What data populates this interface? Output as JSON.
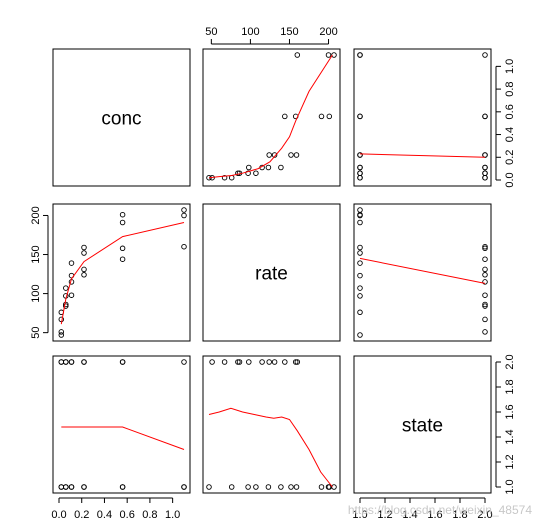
{
  "chart_data": {
    "type": "scatter",
    "layout": "scatterplot-matrix",
    "variables": [
      "conc",
      "rate",
      "state"
    ],
    "colors": {
      "points": "#000000",
      "smooth_line": "#ff0000",
      "frame": "#000000"
    },
    "axes": {
      "conc": {
        "range": [
          0.0,
          1.1
        ],
        "ticks": [
          "0.0",
          "0.2",
          "0.4",
          "0.6",
          "0.8",
          "1.0"
        ],
        "tick_values": [
          0.0,
          0.2,
          0.4,
          0.6,
          0.8,
          1.0
        ]
      },
      "rate": {
        "range": [
          47,
          207
        ],
        "ticks": [
          "50",
          "100",
          "150",
          "200"
        ],
        "tick_values": [
          50,
          100,
          150,
          200
        ]
      },
      "state": {
        "range": [
          1.0,
          2.0
        ],
        "ticks": [
          "1.0",
          "1.2",
          "1.4",
          "1.6",
          "1.8",
          "2.0"
        ],
        "tick_values": [
          1.0,
          1.2,
          1.4,
          1.6,
          1.8,
          2.0
        ]
      }
    },
    "tick_label_positions": {
      "conc": "bottom",
      "rate_top": "top",
      "rate_left": "left",
      "conc_right": "right",
      "state_right": "right",
      "state_bottom": "bottom"
    },
    "observations": [
      {
        "conc": 0.02,
        "rate": 76,
        "state": 1
      },
      {
        "conc": 0.02,
        "rate": 47,
        "state": 1
      },
      {
        "conc": 0.06,
        "rate": 97,
        "state": 1
      },
      {
        "conc": 0.06,
        "rate": 107,
        "state": 1
      },
      {
        "conc": 0.11,
        "rate": 123,
        "state": 1
      },
      {
        "conc": 0.11,
        "rate": 139,
        "state": 1
      },
      {
        "conc": 0.22,
        "rate": 159,
        "state": 1
      },
      {
        "conc": 0.22,
        "rate": 152,
        "state": 1
      },
      {
        "conc": 0.56,
        "rate": 191,
        "state": 1
      },
      {
        "conc": 0.56,
        "rate": 201,
        "state": 1
      },
      {
        "conc": 1.1,
        "rate": 207,
        "state": 1
      },
      {
        "conc": 1.1,
        "rate": 200,
        "state": 1
      },
      {
        "conc": 0.02,
        "rate": 67,
        "state": 2
      },
      {
        "conc": 0.02,
        "rate": 51,
        "state": 2
      },
      {
        "conc": 0.06,
        "rate": 84,
        "state": 2
      },
      {
        "conc": 0.06,
        "rate": 86,
        "state": 2
      },
      {
        "conc": 0.11,
        "rate": 98,
        "state": 2
      },
      {
        "conc": 0.11,
        "rate": 115,
        "state": 2
      },
      {
        "conc": 0.22,
        "rate": 131,
        "state": 2
      },
      {
        "conc": 0.22,
        "rate": 124,
        "state": 2
      },
      {
        "conc": 0.56,
        "rate": 144,
        "state": 2
      },
      {
        "conc": 0.56,
        "rate": 158,
        "state": 2
      },
      {
        "conc": 1.1,
        "rate": 160,
        "state": 2
      }
    ],
    "smooth_lines": {
      "rate_vs_conc": {
        "x": [
          0.02,
          0.06,
          0.11,
          0.22,
          0.56,
          1.1
        ],
        "y": [
          61,
          93,
          119,
          141,
          173,
          191
        ]
      },
      "conc_vs_rate": {
        "x": [
          47,
          60,
          76,
          90,
          110,
          125,
          140,
          150,
          158,
          175,
          205
        ],
        "y": [
          0.02,
          0.03,
          0.04,
          0.06,
          0.1,
          0.16,
          0.28,
          0.38,
          0.52,
          0.78,
          1.1
        ]
      },
      "state_vs_conc": {
        "x": [
          0.02,
          0.56,
          1.1
        ],
        "y": [
          1.48,
          1.48,
          1.3
        ]
      },
      "conc_vs_state": {
        "x": [
          1.0,
          2.0
        ],
        "y": [
          0.23,
          0.2
        ]
      },
      "state_vs_rate": {
        "x": [
          47,
          60,
          75,
          90,
          105,
          120,
          130,
          140,
          150,
          160,
          175,
          190,
          205
        ],
        "y": [
          1.58,
          1.6,
          1.63,
          1.6,
          1.58,
          1.56,
          1.55,
          1.56,
          1.54,
          1.45,
          1.3,
          1.12,
          1.0
        ]
      },
      "rate_vs_state": {
        "x": [
          1.0,
          2.0
        ],
        "y": [
          145,
          113
        ]
      }
    }
  }
}
